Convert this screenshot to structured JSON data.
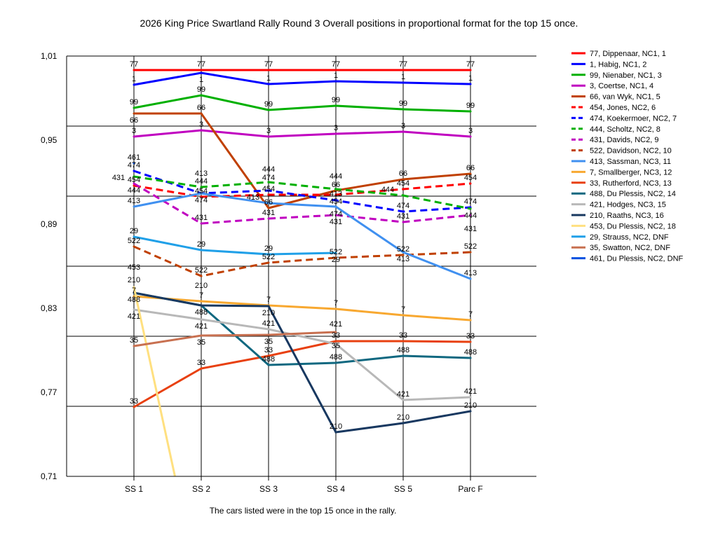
{
  "chart_data": {
    "type": "line",
    "title": "2026 King Price Swartland Rally Round 3  Overall positions in proportional format for the top 15 once.",
    "xlabel": "The cars listed were in the top 15 once in the rally.",
    "ylabel": "",
    "ylim": [
      0.71,
      1.01
    ],
    "yticks": [
      "1,01",
      "0,95",
      "0,89",
      "0,83",
      "0,77",
      "0,71"
    ],
    "ytick_values": [
      1.01,
      0.95,
      0.89,
      0.83,
      0.77,
      0.71
    ],
    "grid_values": [
      1.01,
      0.96,
      0.91,
      0.86,
      0.81,
      0.76,
      0.71
    ],
    "categories": [
      "SS 1",
      "SS 2",
      "SS 3",
      "SS 4",
      "SS 5",
      "Parc F"
    ],
    "legend_position": "right",
    "series": [
      {
        "name": "77, Dippenaar, NC1, 1",
        "label": "77",
        "color": "#ff0000",
        "dash": false,
        "values": [
          1.0,
          1.0,
          1.0,
          1.0,
          1.0,
          1.0
        ]
      },
      {
        "name": "1, Habig, NC1, 2",
        "label": "1",
        "color": "#0000ff",
        "dash": false,
        "values": [
          0.9895,
          0.998,
          0.99,
          0.992,
          0.991,
          0.99
        ]
      },
      {
        "name": "99, Nienaber, NC1, 3",
        "label": "99",
        "color": "#00b000",
        "dash": false,
        "values": [
          0.973,
          0.982,
          0.9715,
          0.9745,
          0.972,
          0.9705
        ]
      },
      {
        "name": "3, Coertse, NC1, 4",
        "label": "3",
        "color": "#c000c0",
        "dash": false,
        "values": [
          0.9525,
          0.957,
          0.9525,
          0.9545,
          0.956,
          0.9525
        ]
      },
      {
        "name": "66, van Wyk, NC1, 5",
        "label": "66",
        "color": "#c04000",
        "dash": false,
        "values": [
          0.969,
          0.969,
          0.9015,
          0.914,
          0.922,
          0.926
        ]
      },
      {
        "name": "454, Jones, NC2, 6",
        "label": "454",
        "color": "#ff0000",
        "dash": true,
        "values": [
          0.9175,
          0.9095,
          0.911,
          0.911,
          0.915,
          0.919
        ]
      },
      {
        "name": "474, Koekermoer, NC2, 7",
        "label": "474",
        "color": "#0000ff",
        "dash": true,
        "values": [
          0.928,
          0.912,
          0.914,
          0.907,
          0.899,
          0.902
        ]
      },
      {
        "name": "444, Scholtz, NC2, 8",
        "label": "444",
        "color": "#00b000",
        "dash": true,
        "values": [
          0.924,
          0.9165,
          0.92,
          0.915,
          0.9105,
          0.901
        ]
      },
      {
        "name": "431, Davids, NC2, 9",
        "label": "431",
        "color": "#c000c0",
        "dash": true,
        "values": [
          0.919,
          0.8905,
          0.894,
          0.8965,
          0.8915,
          0.8965
        ]
      },
      {
        "name": "522, Davidson, NC2, 10",
        "label": "522",
        "color": "#c04000",
        "dash": true,
        "values": [
          0.874,
          0.853,
          0.8625,
          0.866,
          0.868,
          0.87
        ]
      },
      {
        "name": "413, Sassman, NC3, 11",
        "label": "413",
        "color": "#4090f0",
        "dash": false,
        "values": [
          0.9025,
          0.912,
          0.905,
          0.9025,
          0.87,
          0.851
        ]
      },
      {
        "name": "7, Smallberger, NC3, 12",
        "label": "7",
        "color": "#f8a830",
        "dash": false,
        "values": [
          0.8385,
          0.835,
          0.832,
          0.8295,
          0.825,
          0.8215
        ]
      },
      {
        "name": "33, Rutherford, NC3, 13",
        "label": "33",
        "color": "#e84010",
        "dash": false,
        "values": [
          0.7595,
          0.787,
          0.796,
          0.8065,
          0.8065,
          0.806
        ]
      },
      {
        "name": "488, Du Plessis, NC2, 14",
        "label": "488",
        "color": "#106880",
        "dash": false,
        "values": [
          0.841,
          0.832,
          0.7895,
          0.791,
          0.796,
          0.7945
        ]
      },
      {
        "name": "421, Hodges, NC3, 15",
        "label": "421",
        "color": "#b8b8b8",
        "dash": false,
        "values": [
          0.829,
          0.822,
          0.815,
          0.8045,
          0.7645,
          0.7665
        ]
      },
      {
        "name": "210, Raaths, NC3, 16",
        "label": "210",
        "color": "#183860",
        "dash": false,
        "values": [
          0.841,
          0.832,
          0.8315,
          0.7415,
          0.748,
          0.7565
        ]
      },
      {
        "name": "453, Du Plessis, NC2, 18",
        "label": "453",
        "color": "#ffe080",
        "dash": false,
        "values": [
          0.845,
          0.6235,
          null,
          null,
          null,
          null
        ]
      },
      {
        "name": "29, Strauss, NC2,  DNF",
        "label": "29",
        "color": "#20a0e8",
        "dash": false,
        "values": [
          0.881,
          0.8715,
          0.8685,
          0.8695,
          null,
          null
        ]
      },
      {
        "name": "35, Swatton, NC2,  DNF",
        "label": "35",
        "color": "#c87050",
        "dash": false,
        "values": [
          0.803,
          0.8105,
          0.811,
          0.813,
          null,
          null
        ]
      },
      {
        "name": "461, Du Plessis, NC2,  DNF",
        "label": "461",
        "color": "#0050e0",
        "dash": false,
        "values": [
          0.9335,
          null,
          null,
          null,
          null,
          null
        ]
      }
    ]
  }
}
